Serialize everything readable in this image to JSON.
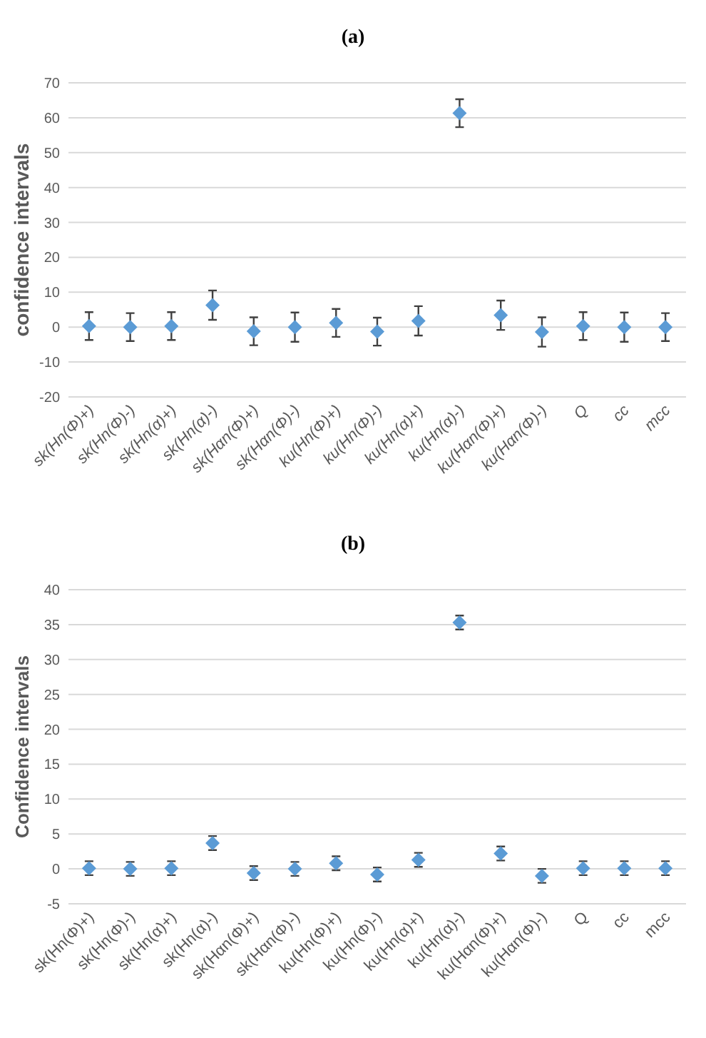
{
  "chart_data": [
    {
      "type": "scatter",
      "title": "(a)",
      "ylabel": "confidence intervals",
      "categories": [
        "sk(Hn(Φ)+)",
        "sk(Hn(Φ)-)",
        "sk(Hn(α)+)",
        "sk(Hn(α)-)",
        "sk(Hαn(Φ)+)",
        "sk(Hαn(Φ)-)",
        "ku(Hn(Φ)+)",
        "ku(Hn(Φ)-)",
        "ku(Hn(α)+)",
        "ku(Hn(α)-)",
        "ku(Hαn(Φ)+)",
        "ku(Hαn(Φ)-)",
        "Q",
        "cc",
        "mcc"
      ],
      "series": [
        {
          "color": "#5b9bd5",
          "values": [
            0.3,
            0,
            0.3,
            6.3,
            -1.2,
            0,
            1.2,
            -1.3,
            1.8,
            61.3,
            3.4,
            -1.4,
            0.3,
            0,
            0
          ],
          "errors": [
            4,
            4,
            4,
            4.2,
            4,
            4.2,
            4,
            4,
            4.2,
            4,
            4.2,
            4.2,
            4,
            4.2,
            4
          ]
        }
      ],
      "ylim": [
        -20,
        70
      ],
      "yticks": [
        -20,
        -10,
        0,
        10,
        20,
        30,
        40,
        50,
        60,
        70
      ],
      "grid": "y",
      "marker": "diamond"
    },
    {
      "type": "scatter",
      "title": "(b)",
      "ylabel": "Confidence intervals",
      "categories": [
        "sk(Hn(Φ)+)",
        "sk(Hn(Φ)-)",
        "sk(Hn(α)+)",
        "sk(Hn(α)-)",
        "sk(Hαn(Φ)+)",
        "sk(Hαn(Φ)-)",
        "ku(Hn(Φ)+)",
        "ku(Hn(Φ)-)",
        "ku(Hn(α)+)",
        "ku(Hn(α)-)",
        "ku(Hαn(Φ)+)",
        "ku(Hαn(Φ)-)",
        "Q",
        "cc",
        "mcc"
      ],
      "series": [
        {
          "color": "#5b9bd5",
          "values": [
            0.1,
            0,
            0.1,
            3.7,
            -0.6,
            0,
            0.8,
            -0.8,
            1.3,
            35.3,
            2.2,
            -1,
            0.1,
            0.1,
            0.1
          ],
          "errors": [
            1,
            1,
            1,
            1,
            1,
            1,
            1,
            1,
            1,
            1,
            1,
            1,
            1,
            1,
            1
          ]
        }
      ],
      "ylim": [
        -5,
        40
      ],
      "yticks": [
        -5,
        0,
        5,
        10,
        15,
        20,
        25,
        30,
        35,
        40
      ],
      "grid": "y",
      "marker": "diamond"
    }
  ]
}
